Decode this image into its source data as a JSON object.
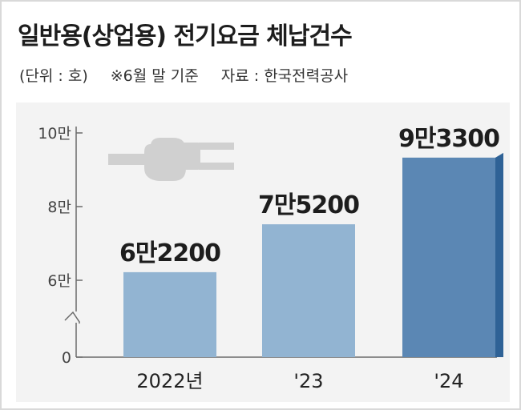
{
  "header": {
    "title": "일반용(상업용) 전기요금 체납건수",
    "unit": "(단위 : 호)",
    "note": "※6월 말 기준",
    "source": "자료 : 한국전력공사"
  },
  "colors": {
    "bar_light": "#92b4d2",
    "bar_dark": "#5b87b4",
    "bar_dark_side": "#2f6296",
    "axis": "#6b6b6b",
    "plug": "#d0d0d0"
  },
  "icon": "electric-plug-icon",
  "chart_data": {
    "type": "bar",
    "title": "일반용(상업용) 전기요금 체납건수",
    "categories": [
      "2022년",
      "'23",
      "'24"
    ],
    "values": [
      62200,
      75200,
      93300
    ],
    "value_labels": [
      "6만2200",
      "7만5200",
      "9만3300"
    ],
    "y_ticks": [
      {
        "value": 0,
        "label": "0"
      },
      {
        "value": 60000,
        "label": "6만"
      },
      {
        "value": 80000,
        "label": "8만"
      },
      {
        "value": 100000,
        "label": "10만"
      }
    ],
    "ylim": [
      0,
      100000
    ],
    "axis_break": true,
    "grid": false,
    "highlight_index": 2
  }
}
